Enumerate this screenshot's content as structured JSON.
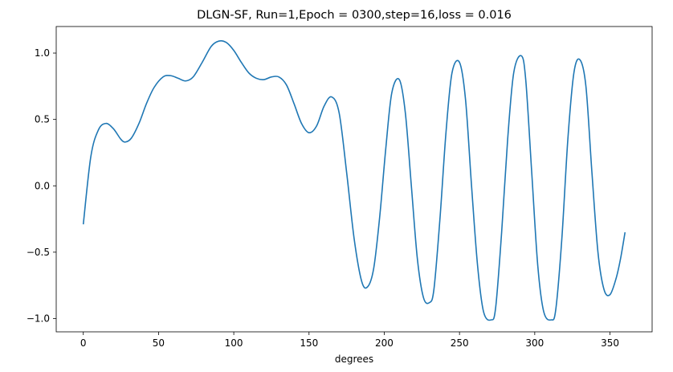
{
  "chart_data": {
    "type": "line",
    "title": "DLGN-SF, Run=1,Epoch = 0300,step=16,loss = 0.016",
    "xlabel": "degrees",
    "ylabel": "",
    "xlim": [
      -18,
      378
    ],
    "ylim": [
      -1.1,
      1.2
    ],
    "grid": false,
    "x_ticks": [
      0,
      50,
      100,
      150,
      200,
      250,
      300,
      350
    ],
    "y_ticks": [
      -1.0,
      -0.5,
      0.0,
      0.5,
      1.0
    ],
    "x_tick_labels": [
      "0",
      "50",
      "100",
      "150",
      "200",
      "250",
      "300",
      "350"
    ],
    "y_tick_labels": [
      "−1.0",
      "−0.5",
      "0.0",
      "0.5",
      "1.0"
    ],
    "series": [
      {
        "color": "#1f77b4",
        "x": [
          0,
          5,
          10,
          15,
          20,
          25,
          28,
          32,
          37,
          42,
          47,
          53,
          58,
          63,
          68,
          73,
          79,
          85,
          90,
          95,
          100,
          105,
          110,
          115,
          120,
          125,
          130,
          135,
          140,
          145,
          150,
          155,
          160,
          165,
          170,
          175,
          180,
          185,
          189,
          193,
          197,
          201,
          205,
          210,
          214,
          218,
          222,
          226,
          230,
          233,
          237,
          241,
          245,
          250,
          254,
          258,
          262,
          266,
          271,
          274,
          278,
          282,
          286,
          291,
          294,
          298,
          302,
          306,
          311,
          314,
          318,
          322,
          326,
          330,
          334,
          338,
          342,
          346,
          350,
          354,
          357,
          360
        ],
        "y": [
          -0.29,
          0.22,
          0.42,
          0.47,
          0.43,
          0.35,
          0.33,
          0.36,
          0.47,
          0.62,
          0.74,
          0.82,
          0.83,
          0.81,
          0.79,
          0.82,
          0.93,
          1.05,
          1.09,
          1.08,
          1.02,
          0.93,
          0.85,
          0.81,
          0.8,
          0.82,
          0.82,
          0.76,
          0.62,
          0.47,
          0.4,
          0.45,
          0.6,
          0.67,
          0.55,
          0.1,
          -0.4,
          -0.72,
          -0.76,
          -0.62,
          -0.23,
          0.28,
          0.7,
          0.8,
          0.55,
          0.0,
          -0.55,
          -0.84,
          -0.88,
          -0.78,
          -0.25,
          0.4,
          0.85,
          0.93,
          0.65,
          0.0,
          -0.6,
          -0.95,
          -1.01,
          -0.92,
          -0.35,
          0.35,
          0.85,
          0.98,
          0.8,
          0.1,
          -0.6,
          -0.95,
          -1.01,
          -0.93,
          -0.4,
          0.35,
          0.85,
          0.95,
          0.75,
          0.1,
          -0.5,
          -0.78,
          -0.82,
          -0.7,
          -0.55,
          -0.35
        ]
      }
    ]
  }
}
